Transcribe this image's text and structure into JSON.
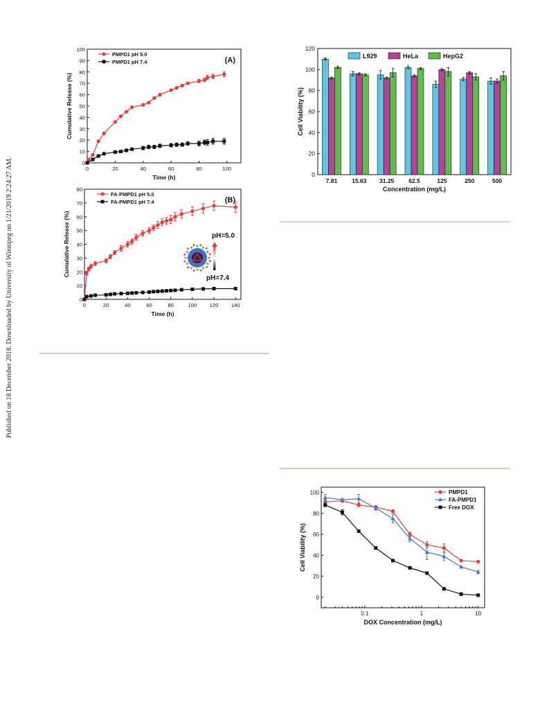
{
  "sidebar": {
    "published_note": "Published on 18 December 2018. Downloaded by University of Winnipeg on 1/21/2019 2:24:27 AM."
  },
  "colors": {
    "red": "#ee3a3a",
    "black": "#111111",
    "blue": "#4a73c4",
    "l929": "#5ec8e0",
    "hela": "#b0459a",
    "hepg2": "#5dbe4b",
    "rule": "#d9cfb8"
  },
  "chart_data": [
    {
      "id": "A",
      "type": "line",
      "panel_label": "(A)",
      "xlabel": "Time (h)",
      "ylabel": "Cumulative Release (%)",
      "xlim": [
        0,
        110
      ],
      "ylim": [
        0,
        100
      ],
      "xticks": [
        0,
        20,
        40,
        60,
        80,
        100
      ],
      "yticks": [
        0,
        10,
        20,
        30,
        40,
        50,
        60,
        70,
        80,
        90,
        100
      ],
      "legend_position": "top-left",
      "series": [
        {
          "name": "PMPD1 pH 5.0",
          "color": "#ee3a3a",
          "marker": "circle",
          "x": [
            0,
            1,
            4,
            8,
            12,
            20,
            24,
            28,
            32,
            40,
            44,
            48,
            52,
            60,
            64,
            68,
            72,
            80,
            84,
            86,
            90,
            98
          ],
          "y": [
            0,
            3,
            7,
            19,
            26,
            36,
            41,
            45,
            49,
            51,
            53,
            57,
            60,
            64,
            66,
            68,
            70,
            72,
            73,
            75,
            76,
            78
          ],
          "err": [
            0,
            0.5,
            0.5,
            0.8,
            0.8,
            0.8,
            1,
            1,
            1,
            1,
            1,
            1,
            1,
            1,
            1,
            1,
            1,
            1.5,
            1.5,
            2,
            2,
            2
          ]
        },
        {
          "name": "PMPD1 pH 7.4",
          "color": "#111111",
          "marker": "square",
          "x": [
            0,
            4,
            8,
            12,
            20,
            24,
            28,
            32,
            40,
            44,
            48,
            52,
            60,
            64,
            68,
            72,
            80,
            84,
            86,
            90,
            98
          ],
          "y": [
            0,
            3,
            6,
            8,
            9.5,
            10,
            11,
            12,
            13,
            14,
            14,
            15,
            15.5,
            16,
            16,
            17,
            17,
            18,
            18,
            19,
            19
          ],
          "err": [
            0,
            0.5,
            0.5,
            0.5,
            0.5,
            0.8,
            0.8,
            1,
            1.5,
            1.5,
            1.5,
            1.5,
            1.5,
            1.5,
            1.5,
            1.5,
            2,
            2,
            2.5,
            2.5,
            2.5
          ]
        }
      ]
    },
    {
      "id": "B",
      "type": "line",
      "panel_label": "(B)",
      "xlabel": "Time (h)",
      "ylabel": "Cumulative Release (%)",
      "xlim": [
        0,
        145
      ],
      "ylim": [
        0,
        80
      ],
      "xticks": [
        0,
        20,
        40,
        60,
        80,
        100,
        120,
        140
      ],
      "yticks": [
        0,
        10,
        20,
        30,
        40,
        50,
        60,
        70,
        80
      ],
      "legend_position": "top-left",
      "inset": {
        "top_label": "pH=5.0",
        "bottom_label": "pH=7.4"
      },
      "series": [
        {
          "name": "FA-PMPD1 pH 5.0",
          "color": "#ee3a3a",
          "marker": "circle",
          "x": [
            0,
            2,
            4,
            6,
            10,
            20,
            24,
            28,
            34,
            40,
            44,
            48,
            54,
            60,
            64,
            68,
            72,
            76,
            80,
            84,
            90,
            100,
            110,
            120,
            140
          ],
          "y": [
            0,
            19,
            22,
            24,
            26,
            28,
            31,
            34,
            37,
            40,
            42,
            45,
            48,
            50,
            52,
            54,
            56,
            57,
            58,
            60,
            62,
            64,
            66,
            68,
            67
          ],
          "err": [
            0,
            1.5,
            1.5,
            1.5,
            1.5,
            1.5,
            1.5,
            1.5,
            2,
            2,
            2,
            2,
            2,
            2,
            2,
            2.5,
            2.5,
            2.5,
            3,
            3,
            3,
            3,
            3.5,
            3.5,
            4
          ]
        },
        {
          "name": "FA-PMPD1 pH 7.4",
          "color": "#111111",
          "marker": "square",
          "x": [
            0,
            2,
            6,
            10,
            20,
            24,
            28,
            34,
            40,
            44,
            48,
            54,
            60,
            64,
            68,
            72,
            76,
            80,
            84,
            90,
            100,
            110,
            120,
            140
          ],
          "y": [
            0,
            2,
            2.5,
            3,
            3.3,
            3.6,
            4,
            4.2,
            4.4,
            4.6,
            4.8,
            5,
            5.3,
            5.6,
            5.8,
            6,
            6.2,
            6.4,
            6.6,
            7,
            7.3,
            7.6,
            7.8,
            7.8
          ],
          "err": [
            0,
            0.3,
            0.3,
            0.3,
            0.3,
            0.3,
            0.3,
            0.3,
            0.3,
            0.3,
            0.3,
            0.3,
            0.3,
            0.3,
            0.3,
            0.3,
            0.3,
            0.3,
            0.3,
            0.3,
            0.5,
            0.5,
            0.5,
            0.5
          ]
        }
      ]
    },
    {
      "id": "C",
      "type": "bar",
      "xlabel": "Concentration (mg/L)",
      "ylabel": "Cell Viability (%)",
      "ylim": [
        0,
        120
      ],
      "yticks": [
        0,
        20,
        40,
        60,
        80,
        100,
        120
      ],
      "categories": [
        "7.81",
        "15.63",
        "31.25",
        "62.5",
        "125",
        "250",
        "500"
      ],
      "legend_position": "top",
      "series": [
        {
          "name": "L929",
          "color": "#5ec8e0",
          "values": [
            110,
            96,
            95,
            102,
            86,
            91,
            89
          ],
          "err": [
            1,
            2,
            4,
            1.5,
            3,
            1.5,
            3
          ]
        },
        {
          "name": "HeLa",
          "color": "#b0459a",
          "values": [
            92,
            96,
            92,
            94,
            100,
            97,
            89
          ],
          "err": [
            1,
            1,
            1,
            1,
            1,
            1,
            2
          ]
        },
        {
          "name": "HepG2",
          "color": "#5dbe4b",
          "values": [
            102,
            95,
            97,
            101,
            98,
            93,
            94
          ],
          "err": [
            1,
            1,
            4,
            1,
            4,
            3,
            4
          ]
        }
      ]
    },
    {
      "id": "D",
      "type": "line",
      "xlabel": "DOX Concentration (mg/L)",
      "ylabel": "Cell Viability (%)",
      "xscale": "log",
      "xlim": [
        0.017,
        13
      ],
      "ylim": [
        -10,
        105
      ],
      "xticks": [
        0.1,
        1,
        10
      ],
      "xtick_labels": [
        "0.1",
        "1",
        "10"
      ],
      "yticks": [
        0,
        20,
        40,
        60,
        80,
        100
      ],
      "legend_position": "top-right",
      "series": [
        {
          "name": "PMPD1",
          "color": "#ee3a3a",
          "marker": "circle",
          "x": [
            0.02,
            0.04,
            0.078,
            0.156,
            0.3125,
            0.625,
            1.25,
            2.5,
            5,
            10
          ],
          "y": [
            91,
            92,
            88,
            86,
            82,
            60,
            50,
            47,
            35,
            34
          ],
          "err": [
            2,
            1.5,
            1.5,
            1.5,
            1.5,
            2,
            3,
            4,
            1,
            1
          ]
        },
        {
          "name": "FA-PMPD1",
          "color": "#4a73c4",
          "marker": "triangle",
          "x": [
            0.02,
            0.04,
            0.078,
            0.156,
            0.3125,
            0.625,
            1.25,
            2.5,
            5,
            10
          ],
          "y": [
            95,
            93,
            94,
            85,
            75,
            56,
            43,
            39,
            29,
            24
          ],
          "err": [
            3,
            1.5,
            4,
            2,
            4,
            3,
            7,
            4,
            1,
            1.5
          ]
        },
        {
          "name": "Free DOX",
          "color": "#111111",
          "marker": "square",
          "x": [
            0.02,
            0.04,
            0.078,
            0.156,
            0.3125,
            0.625,
            1.25,
            2.5,
            5,
            10
          ],
          "y": [
            88,
            81,
            63,
            47,
            35,
            28,
            23,
            8,
            3,
            2
          ],
          "err": [
            1.5,
            2.5,
            1,
            1,
            1,
            1,
            1,
            0.5,
            0.5,
            0.5
          ]
        }
      ]
    }
  ]
}
